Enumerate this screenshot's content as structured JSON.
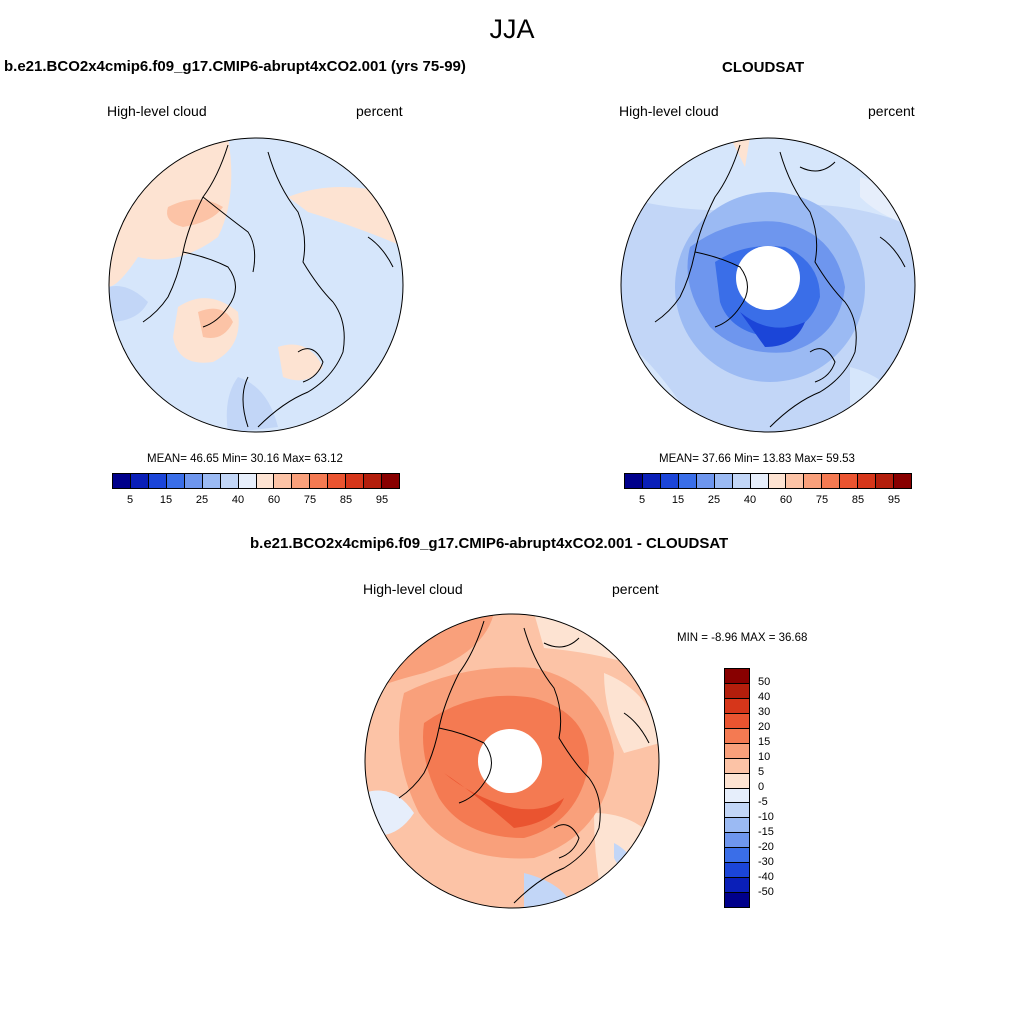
{
  "title": "JJA",
  "panels": [
    {
      "title": "b.e21.BCO2x4cmip6.f09_g17.CMIP6-abrupt4xCO2.001 (yrs 75-99)",
      "left_label": "High-level cloud",
      "right_label": "percent",
      "stats": "MEAN=  46.65  Min=  30.16  Max=  63.12",
      "mean": 46.65,
      "min": 30.16,
      "max": 63.12,
      "base_color": "#d6e6fb"
    },
    {
      "title": "CLOUDSAT",
      "left_label": "High-level cloud",
      "right_label": "percent",
      "stats": "MEAN=  37.66  Min=  13.83  Max=  59.53",
      "mean": 37.66,
      "min": 13.83,
      "max": 59.53,
      "base_color": "#bcd3f7"
    },
    {
      "title": "b.e21.BCO2x4cmip6.f09_g17.CMIP6-abrupt4xCO2.001 - CLOUDSAT",
      "left_label": "High-level cloud",
      "right_label": "percent",
      "stats": "MIN =  -8.96 MAX =  36.68",
      "min": -8.96,
      "max": 36.68,
      "base_color": "#fbb596"
    }
  ],
  "colorbar_abs": {
    "colors": [
      "#00008b",
      "#0a1fb8",
      "#1b45d8",
      "#3a6ee8",
      "#6e96ee",
      "#9bbaf3",
      "#c2d6f7",
      "#e6eefb",
      "#fde3d2",
      "#fcc3a6",
      "#f9a07b",
      "#f47a52",
      "#ea5430",
      "#d6361a",
      "#b31e0c",
      "#880000"
    ],
    "tick_labels": [
      "5",
      "15",
      "25",
      "40",
      "60",
      "75",
      "85",
      "95"
    ]
  },
  "colorbar_diff": {
    "colors": [
      "#880000",
      "#b31e0c",
      "#d6361a",
      "#ea5430",
      "#f47a52",
      "#f9a07b",
      "#fcc3a6",
      "#fde3d2",
      "#e6eefb",
      "#c2d6f7",
      "#9bbaf3",
      "#6e96ee",
      "#3a6ee8",
      "#1b45d8",
      "#0a1fb8",
      "#00008b"
    ],
    "tick_labels": [
      "50",
      "40",
      "30",
      "20",
      "15",
      "10",
      "5",
      "0",
      "-5",
      "-10",
      "-15",
      "-20",
      "-30",
      "-40",
      "-50"
    ]
  }
}
